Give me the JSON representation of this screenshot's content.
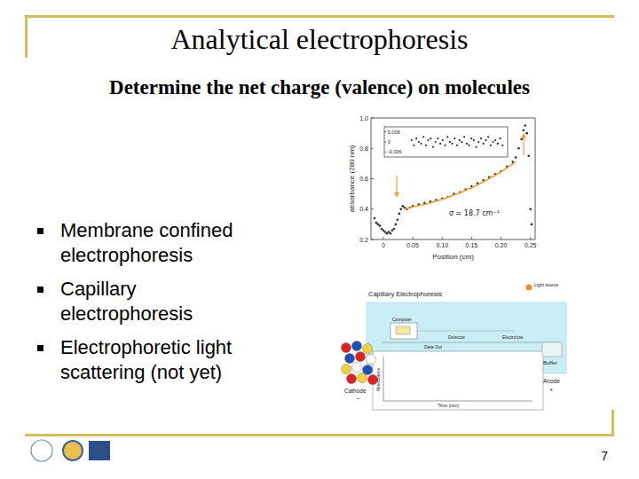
{
  "slide": {
    "title": "Analytical electrophoresis",
    "subtitle": "Determine the net charge (valence) on molecules",
    "bullets": [
      "Membrane confined electrophoresis",
      "Capillary electrophoresis",
      "Electrophoretic light scattering (not yet)"
    ],
    "page_number": "7"
  },
  "chart_data": [
    {
      "type": "scatter",
      "x_label": "Position (cm)",
      "y_label": "absorbance (280 nm)",
      "annotation": "σ = 18.7 cm⁻¹",
      "xlim": [
        -0.021,
        0.258
      ],
      "ylim": [
        0.2,
        1.0
      ],
      "xticks": [
        0,
        0.05,
        {
          "value": 0.1,
          "label": "0.10"
        },
        0.15,
        {
          "value": 0.2,
          "label": "0.20"
        },
        0.25
      ],
      "yticks": [
        0.2,
        0.4,
        0.6,
        0.8,
        {
          "value": 1.0,
          "label": "1.0"
        }
      ],
      "series": [
        {
          "type": "scatter",
          "color": "#2b2b3a",
          "marker": "circle",
          "x": [
            -0.015,
            -0.012,
            -0.009,
            -0.006,
            -0.003,
            0,
            0.003,
            0.006,
            0.009,
            0.012,
            0.015,
            0.018,
            0.021,
            0.024,
            0.027,
            0.03,
            0.033,
            0.036,
            0.04,
            0.045,
            0.05,
            0.06,
            0.07,
            0.08,
            0.09,
            0.1,
            0.11,
            0.12,
            0.13,
            0.14,
            0.15,
            0.16,
            0.17,
            0.18,
            0.19,
            0.2,
            0.21,
            0.22,
            0.225,
            0.23,
            0.235,
            0.238,
            0.241,
            0.244,
            0.247,
            0.25,
            0.252
          ],
          "values": [
            0.34,
            0.31,
            0.3,
            0.29,
            0.27,
            0.26,
            0.25,
            0.24,
            0.25,
            0.24,
            0.26,
            0.27,
            0.3,
            0.33,
            0.37,
            0.4,
            0.42,
            0.41,
            0.4,
            0.41,
            0.42,
            0.43,
            0.44,
            0.45,
            0.46,
            0.47,
            0.48,
            0.5,
            0.51,
            0.53,
            0.55,
            0.57,
            0.59,
            0.61,
            0.63,
            0.65,
            0.68,
            0.71,
            0.74,
            0.8,
            0.86,
            0.92,
            0.95,
            0.9,
            0.75,
            0.4,
            0.3
          ]
        },
        {
          "type": "line",
          "color": "#f0a030",
          "x": [
            0.035,
            0.05,
            0.075,
            0.1,
            0.125,
            0.15,
            0.175,
            0.2,
            0.225
          ],
          "values": [
            0.4,
            0.415,
            0.435,
            0.465,
            0.5,
            0.54,
            0.59,
            0.645,
            0.71
          ]
        }
      ]
    },
    {
      "type": "scatter",
      "xlim": [
        0.03,
        0.23
      ],
      "ylim": [
        -0.009,
        0.009
      ],
      "yticks": [
        -0.006,
        0,
        0.006
      ],
      "tick_labels": "y",
      "color": "#2b2b3a",
      "marker": "circle",
      "x": [
        0.035,
        0.04,
        0.045,
        0.05,
        0.055,
        0.06,
        0.065,
        0.07,
        0.075,
        0.08,
        0.085,
        0.09,
        0.095,
        0.1,
        0.105,
        0.11,
        0.115,
        0.12,
        0.125,
        0.13,
        0.135,
        0.14,
        0.145,
        0.15,
        0.155,
        0.16,
        0.165,
        0.17,
        0.175,
        0.18,
        0.185,
        0.19,
        0.195,
        0.2,
        0.205,
        0.21,
        0.215,
        0.22,
        0.225
      ],
      "values": [
        0.001,
        -0.002,
        0.002,
        0,
        -0.001,
        0.003,
        -0.002,
        0.001,
        0.002,
        -0.003,
        0,
        0.002,
        -0.001,
        0.001,
        -0.002,
        0.003,
        0,
        -0.001,
        0.002,
        -0.002,
        0.001,
        0,
        0.003,
        -0.001,
        -0.002,
        0.002,
        0.001,
        -0.003,
        0,
        0.002,
        -0.001,
        0.001,
        0.003,
        -0.002,
        0,
        0.001,
        -0.001,
        0.002,
        -0.002
      ]
    }
  ],
  "diagram": {
    "title": "Capillary Electrophoresis",
    "labels": {
      "light_source": "Light source",
      "computer": "Computer",
      "detector": "Detector",
      "data_out": "Data Out",
      "electrolyte": "Electrolyte",
      "buffer": "Buffer",
      "cathode": "Cathode",
      "cathode_sign": "−",
      "anode": "Anode",
      "anode_sign": "+",
      "y_label": "Absorbance",
      "x_label": "Time (min)"
    }
  }
}
